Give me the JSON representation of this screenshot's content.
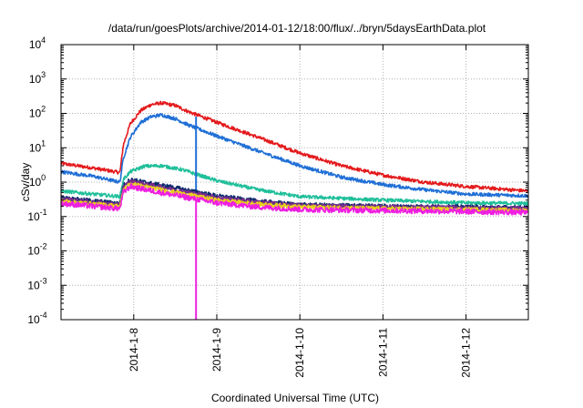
{
  "chart_data": {
    "type": "line",
    "title": "/data/run/goesPlots/archive/2014-01-12/18:00/flux/../bryn/5daysEarthData.plot",
    "xlabel": "Coordinated Universal Time (UTC)",
    "ylabel": "cSv/day",
    "x_scale": "time",
    "y_scale": "log",
    "xlim": [
      "2014-01-07T03:00",
      "2014-01-12T18:00"
    ],
    "ylim": [
      0.0001,
      10000
    ],
    "x_ticks": [
      {
        "x": "2014-01-08T00:00",
        "label": "2014-1-8"
      },
      {
        "x": "2014-01-09T00:00",
        "label": "2014-1-9"
      },
      {
        "x": "2014-01-10T00:00",
        "label": "2014-1-10"
      },
      {
        "x": "2014-01-11T00:00",
        "label": "2014-1-11"
      },
      {
        "x": "2014-01-12T00:00",
        "label": "2014-1-12"
      }
    ],
    "y_ticks": [
      {
        "y": 0.0001,
        "base": "10",
        "exp": "-4"
      },
      {
        "y": 0.001,
        "base": "10",
        "exp": "-3"
      },
      {
        "y": 0.01,
        "base": "10",
        "exp": "-2"
      },
      {
        "y": 0.1,
        "base": "10",
        "exp": "-1"
      },
      {
        "y": 1,
        "base": "10",
        "exp": "0"
      },
      {
        "y": 10,
        "base": "10",
        "exp": "1"
      },
      {
        "y": 100,
        "base": "10",
        "exp": "2"
      },
      {
        "y": 1000,
        "base": "10",
        "exp": "3"
      },
      {
        "y": 10000,
        "base": "10",
        "exp": "4"
      }
    ],
    "grid": true,
    "legend": "none",
    "series": [
      {
        "color": "#e41a1c",
        "noise": 0.05,
        "points": [
          [
            "2014-01-07T03:00",
            3.5
          ],
          [
            "2014-01-07T12:00",
            2.6
          ],
          [
            "2014-01-07T20:00",
            1.9
          ],
          [
            "2014-01-07T21:00",
            12
          ],
          [
            "2014-01-07T23:00",
            50
          ],
          [
            "2014-01-08T02:00",
            120
          ],
          [
            "2014-01-08T05:00",
            180
          ],
          [
            "2014-01-08T08:00",
            200
          ],
          [
            "2014-01-08T12:00",
            170
          ],
          [
            "2014-01-08T16:00",
            110
          ],
          [
            "2014-01-09T00:00",
            55
          ],
          [
            "2014-01-09T12:00",
            20
          ],
          [
            "2014-01-10T00:00",
            7
          ],
          [
            "2014-01-10T12:00",
            3
          ],
          [
            "2014-01-11T00:00",
            1.6
          ],
          [
            "2014-01-11T12:00",
            1.0
          ],
          [
            "2014-01-12T00:00",
            0.75
          ],
          [
            "2014-01-12T18:00",
            0.55
          ]
        ]
      },
      {
        "color": "#1f6fd6",
        "noise": 0.05,
        "points": [
          [
            "2014-01-07T03:00",
            2.0
          ],
          [
            "2014-01-07T12:00",
            1.5
          ],
          [
            "2014-01-07T20:00",
            1.0
          ],
          [
            "2014-01-07T21:00",
            5
          ],
          [
            "2014-01-07T23:00",
            20
          ],
          [
            "2014-01-08T02:00",
            55
          ],
          [
            "2014-01-08T05:00",
            80
          ],
          [
            "2014-01-08T08:00",
            90
          ],
          [
            "2014-01-08T12:00",
            70
          ],
          [
            "2014-01-08T16:00",
            45
          ],
          [
            "2014-01-09T00:00",
            22
          ],
          [
            "2014-01-09T12:00",
            8
          ],
          [
            "2014-01-10T00:00",
            3
          ],
          [
            "2014-01-10T12:00",
            1.4
          ],
          [
            "2014-01-11T00:00",
            0.85
          ],
          [
            "2014-01-11T12:00",
            0.6
          ],
          [
            "2014-01-12T00:00",
            0.45
          ],
          [
            "2014-01-12T18:00",
            0.4
          ]
        ]
      },
      {
        "color": "#1fbf9a",
        "noise": 0.05,
        "points": [
          [
            "2014-01-07T03:00",
            0.55
          ],
          [
            "2014-01-07T20:00",
            0.38
          ],
          [
            "2014-01-07T21:00",
            1.2
          ],
          [
            "2014-01-07T23:00",
            2.0
          ],
          [
            "2014-01-08T03:00",
            2.9
          ],
          [
            "2014-01-08T08:00",
            3.0
          ],
          [
            "2014-01-08T14:00",
            2.3
          ],
          [
            "2014-01-09T00:00",
            1.1
          ],
          [
            "2014-01-09T12:00",
            0.6
          ],
          [
            "2014-01-10T00:00",
            0.38
          ],
          [
            "2014-01-11T00:00",
            0.3
          ],
          [
            "2014-01-12T00:00",
            0.25
          ],
          [
            "2014-01-12T18:00",
            0.24
          ]
        ]
      },
      {
        "color": "#0a2a6a",
        "noise": 0.06,
        "points": [
          [
            "2014-01-07T03:00",
            0.35
          ],
          [
            "2014-01-07T20:00",
            0.24
          ],
          [
            "2014-01-07T21:00",
            0.8
          ],
          [
            "2014-01-07T23:00",
            1.2
          ],
          [
            "2014-01-08T03:00",
            1.0
          ],
          [
            "2014-01-08T10:00",
            0.75
          ],
          [
            "2014-01-09T00:00",
            0.4
          ],
          [
            "2014-01-09T12:00",
            0.28
          ],
          [
            "2014-01-10T00:00",
            0.22
          ],
          [
            "2014-01-11T00:00",
            0.2
          ],
          [
            "2014-01-12T00:00",
            0.19
          ],
          [
            "2014-01-12T18:00",
            0.18
          ]
        ]
      },
      {
        "color": "#7b2d8e",
        "noise": 0.06,
        "points": [
          [
            "2014-01-07T03:00",
            0.32
          ],
          [
            "2014-01-07T20:00",
            0.22
          ],
          [
            "2014-01-07T21:00",
            0.7
          ],
          [
            "2014-01-07T23:00",
            1.05
          ],
          [
            "2014-01-08T03:00",
            0.9
          ],
          [
            "2014-01-08T10:00",
            0.65
          ],
          [
            "2014-01-09T00:00",
            0.36
          ],
          [
            "2014-01-09T12:00",
            0.26
          ],
          [
            "2014-01-10T00:00",
            0.21
          ],
          [
            "2014-01-11T00:00",
            0.19
          ],
          [
            "2014-01-12T00:00",
            0.18
          ],
          [
            "2014-01-12T18:00",
            0.17
          ]
        ]
      },
      {
        "color": "#e8d21a",
        "noise": 0.06,
        "points": [
          [
            "2014-01-07T03:00",
            0.28
          ],
          [
            "2014-01-07T20:00",
            0.2
          ],
          [
            "2014-01-07T21:00",
            0.6
          ],
          [
            "2014-01-07T23:00",
            0.9
          ],
          [
            "2014-01-08T03:00",
            0.75
          ],
          [
            "2014-01-08T10:00",
            0.55
          ],
          [
            "2014-01-09T00:00",
            0.3
          ],
          [
            "2014-01-09T12:00",
            0.23
          ],
          [
            "2014-01-10T00:00",
            0.19
          ],
          [
            "2014-01-11T00:00",
            0.17
          ],
          [
            "2014-01-12T00:00",
            0.16
          ],
          [
            "2014-01-12T18:00",
            0.15
          ]
        ]
      },
      {
        "color": "#ee1fe0",
        "noise": 0.08,
        "points": [
          [
            "2014-01-07T03:00",
            0.24
          ],
          [
            "2014-01-07T20:00",
            0.17
          ],
          [
            "2014-01-07T21:00",
            0.5
          ],
          [
            "2014-01-07T23:00",
            0.75
          ],
          [
            "2014-01-08T03:00",
            0.62
          ],
          [
            "2014-01-08T10:00",
            0.45
          ],
          [
            "2014-01-09T00:00",
            0.25
          ],
          [
            "2014-01-09T12:00",
            0.19
          ],
          [
            "2014-01-10T00:00",
            0.16
          ],
          [
            "2014-01-11T00:00",
            0.15
          ],
          [
            "2014-01-12T00:00",
            0.14
          ],
          [
            "2014-01-12T18:00",
            0.13
          ]
        ]
      }
    ],
    "vertical_lines": [
      {
        "x": "2014-01-08T18:00",
        "y_from": 80,
        "y_to": 0.6,
        "color": "#1f6fd6"
      },
      {
        "x": "2014-01-08T18:00",
        "y_from": 0.3,
        "y_to": 0.0001,
        "color": "#ee1fe0"
      }
    ]
  }
}
